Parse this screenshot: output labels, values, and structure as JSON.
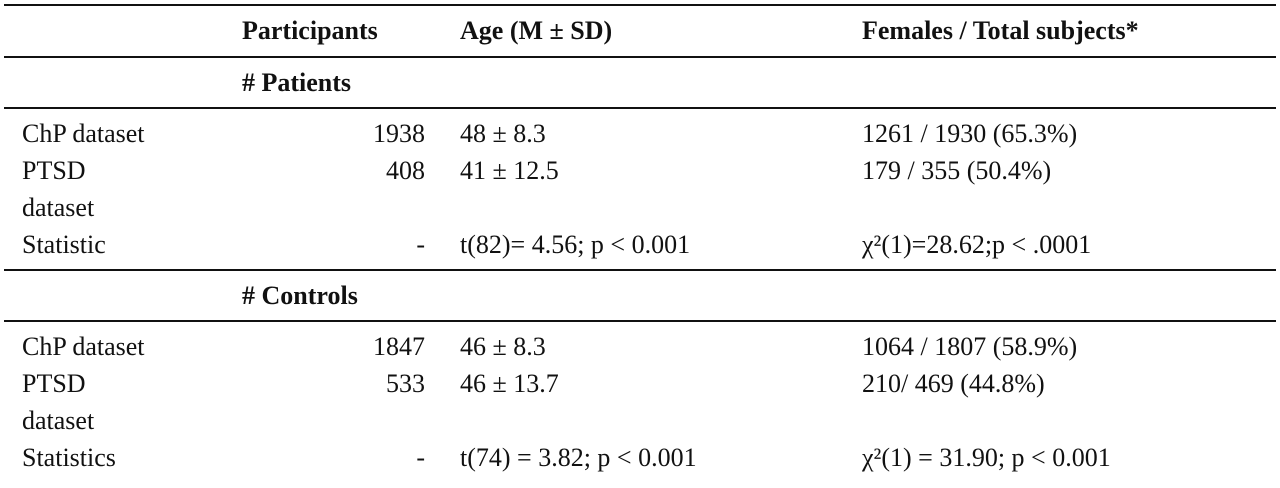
{
  "table": {
    "header": {
      "participants": "Participants",
      "age": "Age (M ± SD)",
      "females": "Females / Total subjects*"
    },
    "sections": [
      {
        "title": "# Patients",
        "rows": [
          {
            "label": [
              "ChP dataset"
            ],
            "participants": "1938",
            "age": "48 ± 8.3",
            "females": "1261 / 1930 (65.3%)"
          },
          {
            "label": [
              "PTSD",
              "dataset"
            ],
            "participants": "408",
            "age": "41 ± 12.5",
            "females": "179 / 355 (50.4%)"
          },
          {
            "label": [
              "Statistic"
            ],
            "participants": "-",
            "age": "t(82)= 4.56; p < 0.001",
            "females": "χ²(1)=28.62;p < .0001"
          }
        ]
      },
      {
        "title": "# Controls",
        "rows": [
          {
            "label": [
              "ChP dataset"
            ],
            "participants": "1847",
            "age": "46 ± 8.3",
            "females": "1064 / 1807 (58.9%)"
          },
          {
            "label": [
              "PTSD",
              "dataset"
            ],
            "participants": "533",
            "age": "46 ± 13.7",
            "females": "210/ 469 (44.8%)"
          },
          {
            "label": [
              "Statistics"
            ],
            "participants": "-",
            "age": "t(74) = 3.82; p < 0.001",
            "females": "χ²(1) = 31.90; p < 0.001"
          }
        ]
      }
    ]
  }
}
